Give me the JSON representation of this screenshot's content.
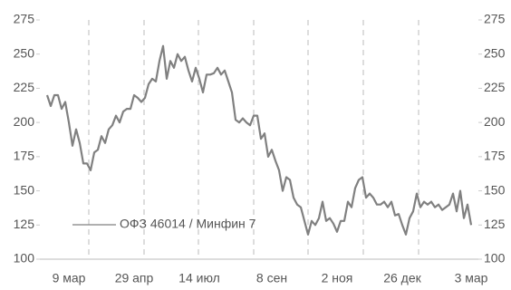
{
  "chart_data": {
    "type": "line",
    "categories": [
      null,
      null,
      null,
      null,
      null,
      null,
      "9 мар",
      null,
      null,
      null,
      null,
      null,
      null,
      null,
      null,
      null,
      null,
      null,
      null,
      null,
      null,
      null,
      null,
      null,
      "29 апр",
      null,
      null,
      null,
      null,
      null,
      null,
      null,
      null,
      null,
      null,
      null,
      null,
      null,
      null,
      null,
      null,
      null,
      "14 июл",
      null,
      null,
      null,
      null,
      null,
      null,
      null,
      null,
      null,
      null,
      null,
      null,
      null,
      null,
      null,
      null,
      null,
      null,
      null,
      "8 сен",
      null,
      null,
      null,
      null,
      null,
      null,
      null,
      null,
      null,
      null,
      null,
      null,
      null,
      null,
      null,
      null,
      null,
      "2 ноя",
      null,
      null,
      null,
      null,
      null,
      null,
      null,
      null,
      null,
      null,
      null,
      null,
      null,
      null,
      null,
      null,
      null,
      "26 дек",
      null,
      null,
      null,
      null,
      null,
      null,
      null,
      null,
      null,
      null,
      null,
      null,
      null,
      null,
      null,
      null,
      null,
      null,
      "3 мар"
    ],
    "series": [
      {
        "name": "ОФЗ 46014 / Минфин 7",
        "color": "#808080",
        "values": [
          220,
          212,
          220,
          220,
          210,
          215,
          200,
          183,
          195,
          185,
          170,
          170,
          165,
          178,
          180,
          190,
          185,
          195,
          198,
          205,
          200,
          208,
          210,
          210,
          220,
          218,
          215,
          218,
          228,
          232,
          230,
          245,
          256,
          232,
          245,
          240,
          250,
          245,
          248,
          238,
          230,
          240,
          232,
          222,
          235,
          235,
          236,
          240,
          235,
          238,
          230,
          222,
          202,
          200,
          203,
          200,
          198,
          205,
          205,
          188,
          192,
          175,
          180,
          172,
          165,
          150,
          160,
          158,
          145,
          140,
          138,
          128,
          118,
          128,
          125,
          130,
          142,
          128,
          130,
          126,
          120,
          128,
          128,
          142,
          138,
          152,
          158,
          160,
          145,
          148,
          145,
          140,
          140,
          142,
          138,
          142,
          132,
          133,
          125,
          118,
          130,
          135,
          148,
          138,
          142,
          140,
          142,
          138,
          140,
          136,
          138,
          140,
          148,
          135,
          150,
          130,
          140,
          125
        ]
      }
    ],
    "ylim": [
      100,
      275
    ],
    "yticks": [
      100,
      125,
      150,
      175,
      200,
      225,
      250,
      275
    ],
    "y2lim": [
      100,
      275
    ],
    "y2ticks": [
      100,
      125,
      150,
      175,
      200,
      225,
      250,
      275
    ],
    "legend": "lower left"
  }
}
